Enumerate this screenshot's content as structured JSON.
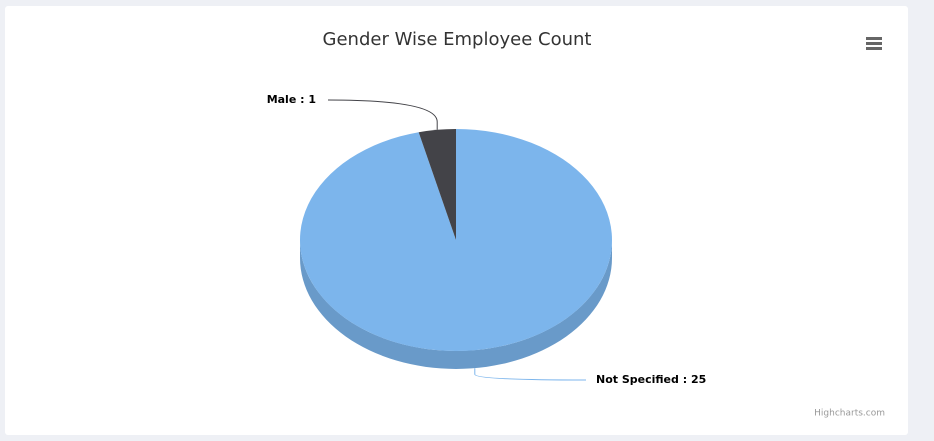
{
  "chart_data": {
    "type": "pie3d",
    "title": "Gender Wise Employee Count",
    "categories": [
      "Not Specified",
      "Male"
    ],
    "values": [
      25,
      1
    ],
    "value_labels": [
      "Not Specified : 25",
      "Male : 1"
    ],
    "colors": [
      "#7cb5ec",
      "#434348"
    ],
    "credits": "Highcharts.com"
  }
}
